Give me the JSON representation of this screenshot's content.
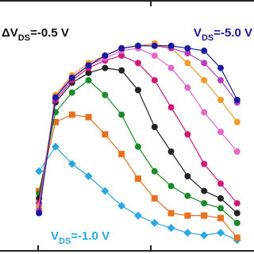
{
  "chart_data": {
    "type": "line",
    "xlim": [
      -0.2,
      12.3
    ],
    "ylim": [
      0,
      100
    ],
    "x": [
      0,
      1,
      2,
      3,
      4,
      5,
      6,
      7,
      8,
      9,
      10,
      11,
      12
    ],
    "series": [
      {
        "color": "#29a8e0",
        "marker": "diamond",
        "values": [
          32,
          42,
          35,
          30,
          24,
          18,
          14,
          11,
          9,
          7,
          6,
          7,
          4
        ]
      },
      {
        "color": "#e8701e",
        "marker": "square",
        "values": [
          24,
          52,
          55,
          54,
          47,
          39,
          29,
          21,
          15,
          14,
          14,
          13,
          5
        ]
      },
      {
        "color": "#1a8a2a",
        "marker": "circle",
        "values": [
          23,
          56,
          64,
          69,
          63,
          55,
          42,
          32,
          26,
          22,
          19,
          17,
          11
        ]
      },
      {
        "color": "#222222",
        "marker": "circle",
        "values": [
          21,
          60,
          68,
          72,
          74,
          73,
          65,
          50,
          40,
          30,
          24,
          21,
          15
        ]
      },
      {
        "color": "#d0187a",
        "marker": "circle",
        "values": [
          19,
          61,
          69,
          74,
          77,
          79,
          76,
          69,
          58,
          47,
          35,
          27,
          19
        ]
      },
      {
        "color": "#e466c8",
        "marker": "circle",
        "values": [
          18,
          63,
          70,
          75,
          78,
          81,
          82,
          79,
          74,
          66,
          56,
          48,
          40
        ]
      },
      {
        "color": "#f49a2c",
        "marker": "circle",
        "values": [
          17,
          63,
          71,
          76,
          79,
          82,
          83,
          84,
          82,
          76,
          69,
          61,
          52
        ]
      },
      {
        "color": "#b83ab8",
        "marker": "circle",
        "values": [
          16,
          62,
          70,
          75,
          79,
          82,
          83,
          83,
          82,
          80,
          76,
          69,
          60
        ]
      },
      {
        "color": "#1a1aa0",
        "marker": "circle",
        "values": [
          15,
          62,
          70,
          75,
          79,
          82,
          83,
          83,
          83,
          82,
          81,
          74,
          61
        ]
      }
    ],
    "annotations": [
      {
        "parts": [
          "ΔV",
          "DS",
          "=-0.5 V"
        ],
        "color": "#111111"
      },
      {
        "parts": [
          "V",
          "DS",
          "=-5.0 V"
        ],
        "color": "#1a1aa0"
      },
      {
        "parts": [
          "V",
          "DS",
          "=-1.0 V"
        ],
        "color": "#29a8e0"
      }
    ]
  }
}
